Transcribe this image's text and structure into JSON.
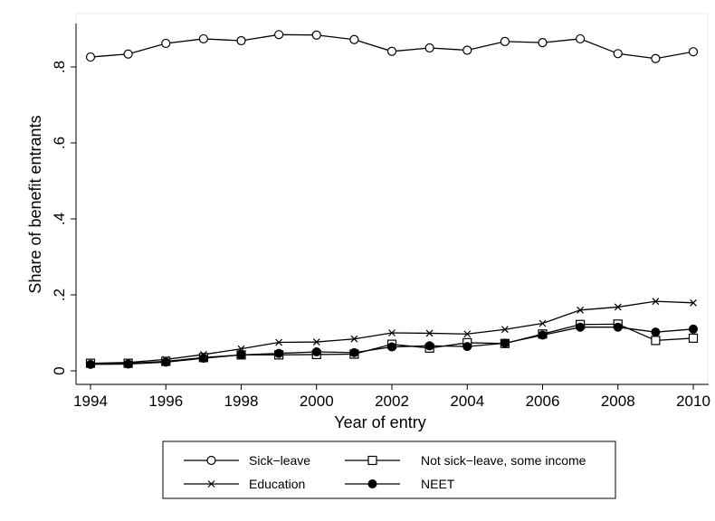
{
  "chart_data": {
    "type": "line",
    "xlabel": "Year of entry",
    "ylabel": "Share of benefit entrants",
    "x": [
      1994,
      1995,
      1996,
      1997,
      1998,
      1999,
      2000,
      2001,
      2002,
      2003,
      2004,
      2005,
      2006,
      2007,
      2008,
      2009,
      2010
    ],
    "xlim": [
      1994,
      2010
    ],
    "ylim": [
      0,
      0.9
    ],
    "xticks": [
      1994,
      1996,
      1998,
      2000,
      2002,
      2004,
      2006,
      2008,
      2010
    ],
    "xtick_labels": [
      "1994",
      "1996",
      "1998",
      "2000",
      "2002",
      "2004",
      "2006",
      "2008",
      "2010"
    ],
    "yticks": [
      0,
      0.2,
      0.4,
      0.6,
      0.8
    ],
    "ytick_labels": [
      "0",
      ".2",
      ".4",
      ".6",
      ".8"
    ],
    "grid": false,
    "legend_position": "bottom",
    "series": [
      {
        "name": "Sick−leave",
        "marker": "hollow-circle",
        "values": [
          0.826,
          0.834,
          0.862,
          0.874,
          0.869,
          0.885,
          0.884,
          0.872,
          0.841,
          0.85,
          0.844,
          0.867,
          0.864,
          0.874,
          0.835,
          0.822,
          0.84
        ]
      },
      {
        "name": "Not sick−leave, some income",
        "marker": "hollow-square",
        "values": [
          0.02,
          0.02,
          0.025,
          0.035,
          0.042,
          0.042,
          0.043,
          0.044,
          0.07,
          0.06,
          0.074,
          0.072,
          0.097,
          0.122,
          0.123,
          0.08,
          0.086
        ]
      },
      {
        "name": "Education",
        "marker": "x",
        "values": [
          0.02,
          0.022,
          0.03,
          0.043,
          0.058,
          0.075,
          0.076,
          0.084,
          0.1,
          0.099,
          0.097,
          0.109,
          0.125,
          0.16,
          0.168,
          0.183,
          0.179
        ]
      },
      {
        "name": "NEET",
        "marker": "filled-circle",
        "values": [
          0.017,
          0.018,
          0.023,
          0.033,
          0.042,
          0.046,
          0.05,
          0.048,
          0.063,
          0.066,
          0.064,
          0.073,
          0.094,
          0.115,
          0.115,
          0.102,
          0.11
        ]
      }
    ]
  }
}
